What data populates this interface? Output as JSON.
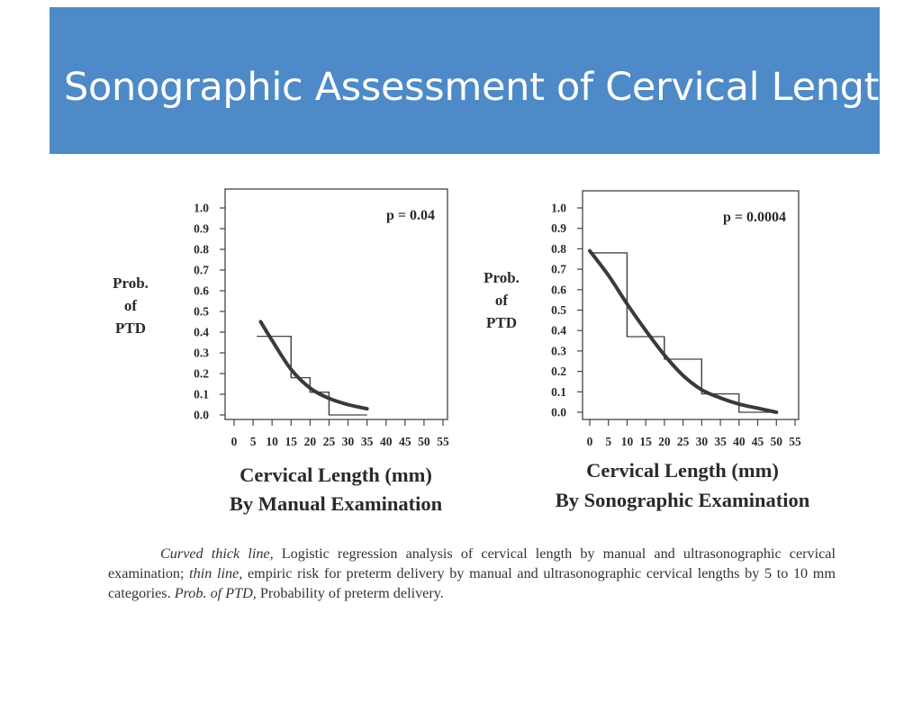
{
  "title": "Sonographic Assessment of Cervical Length",
  "chart_data": [
    {
      "type": "line",
      "annotation": "p = 0.04",
      "ylabel": [
        "Prob.",
        "of",
        "PTD"
      ],
      "xlabel": "Cervical Length (mm)",
      "subtitle": "By Manual Examination",
      "xticks": [
        "0",
        "5",
        "10",
        "15",
        "20",
        "25",
        "30",
        "35",
        "40",
        "45",
        "50",
        "55"
      ],
      "yticks": [
        "0.0",
        "0.1",
        "0.2",
        "0.3",
        "0.4",
        "0.5",
        "0.6",
        "0.7",
        "0.8",
        "0.9",
        "1.0"
      ],
      "xlim": [
        0,
        55
      ],
      "ylim": [
        0,
        1.0
      ],
      "series": [
        {
          "style": "curved thick line",
          "x": [
            7,
            10,
            15,
            20,
            25,
            30,
            35
          ],
          "y": [
            0.45,
            0.36,
            0.22,
            0.13,
            0.08,
            0.05,
            0.03
          ]
        },
        {
          "style": "thin line",
          "steps": [
            {
              "x0": 6,
              "x1": 15,
              "y": 0.38
            },
            {
              "x0": 15,
              "x1": 20,
              "y": 0.18
            },
            {
              "x0": 20,
              "x1": 25,
              "y": 0.11
            },
            {
              "x0": 25,
              "x1": 35,
              "y": 0.0
            }
          ]
        }
      ]
    },
    {
      "type": "line",
      "annotation": "p = 0.0004",
      "ylabel": [
        "Prob.",
        "of",
        "PTD"
      ],
      "xlabel": "Cervical Length (mm)",
      "subtitle": "By Sonographic Examination",
      "xticks": [
        "0",
        "5",
        "10",
        "15",
        "20",
        "25",
        "30",
        "35",
        "40",
        "45",
        "50",
        "55"
      ],
      "yticks": [
        "0.0",
        "0.1",
        "0.2",
        "0.3",
        "0.4",
        "0.5",
        "0.6",
        "0.7",
        "0.8",
        "0.9",
        "1.0"
      ],
      "xlim": [
        0,
        55
      ],
      "ylim": [
        0,
        1.0
      ],
      "series": [
        {
          "style": "curved thick line",
          "x": [
            0,
            5,
            10,
            15,
            20,
            25,
            30,
            35,
            40,
            45,
            50
          ],
          "y": [
            0.79,
            0.67,
            0.53,
            0.4,
            0.28,
            0.18,
            0.11,
            0.07,
            0.04,
            0.02,
            0.0
          ]
        },
        {
          "style": "thin line",
          "steps": [
            {
              "x0": 0,
              "x1": 10,
              "y": 0.78
            },
            {
              "x0": 10,
              "x1": 20,
              "y": 0.37
            },
            {
              "x0": 20,
              "x1": 30,
              "y": 0.26
            },
            {
              "x0": 30,
              "x1": 40,
              "y": 0.09
            },
            {
              "x0": 40,
              "x1": 50,
              "y": 0.0
            }
          ]
        }
      ]
    }
  ],
  "caption": {
    "part1_italic": "Curved thick line,",
    "part2": " Logistic regression analysis of cervical length by manual and ultrasonographic cervical examination; ",
    "part3_italic": "thin line,",
    "part4": " empiric risk for preterm delivery by manual and ultrasonographic cervical lengths by 5 to 10 mm categories. ",
    "part5_italic": "Prob. of PTD,",
    "part6": " Probability of preterm delivery."
  }
}
